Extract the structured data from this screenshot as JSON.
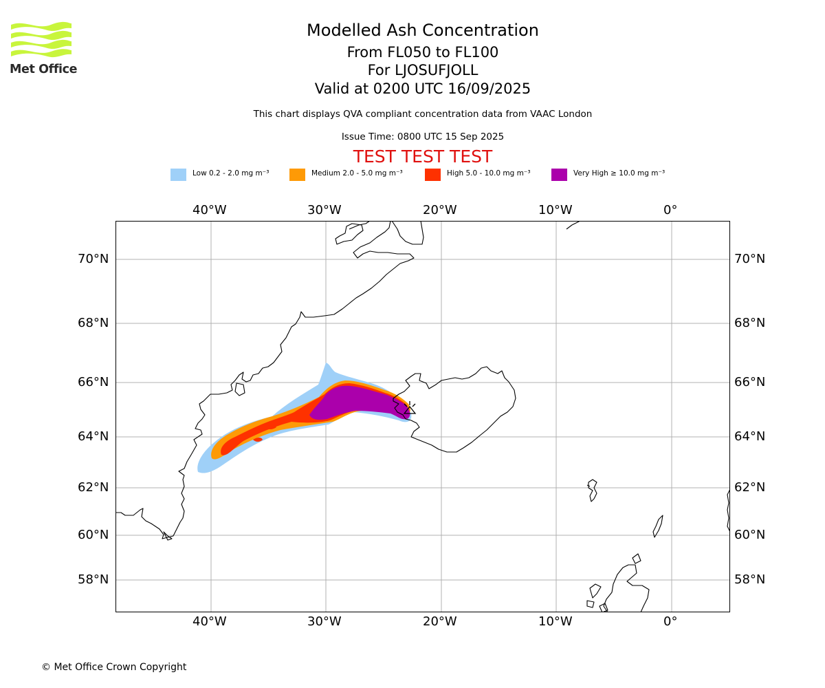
{
  "header": {
    "logo_text": "Met Office",
    "title": "Modelled Ash Concentration",
    "levels": "From FL050 to FL100",
    "volcano": "For LJOSUFJOLL",
    "valid": "Valid at 0200 UTC 16/09/2025",
    "description": "This chart displays QVA compliant concentration data from VAAC London",
    "issue_time": "Issue Time: 0800 UTC 15 Sep 2025",
    "test_banner": "TEST TEST TEST"
  },
  "legend": [
    {
      "label": "Low 0.2 - 2.0 mg m⁻³",
      "color": "#9fd0f8"
    },
    {
      "label": "Medium 2.0 - 5.0 mg m⁻³",
      "color": "#fe9a06"
    },
    {
      "label": "High 5.0 - 10.0 mg m⁻³",
      "color": "#fe3100"
    },
    {
      "label": "Very High ≥ 10.0 mg m⁻³",
      "color": "#ab00ab"
    }
  ],
  "axes": {
    "lon_ticks": [
      "40°W",
      "30°W",
      "20°W",
      "10°W",
      "0°"
    ],
    "lat_ticks": [
      "70°N",
      "68°N",
      "66°N",
      "64°N",
      "62°N",
      "60°N",
      "58°N"
    ]
  },
  "colors": {
    "coastline": "#000000",
    "gridline": "#b0b0b0",
    "test_banner": "#e0100e",
    "logo_green": "#c8f53c"
  },
  "footer": {
    "copyright": "© Met Office Crown Copyright"
  }
}
